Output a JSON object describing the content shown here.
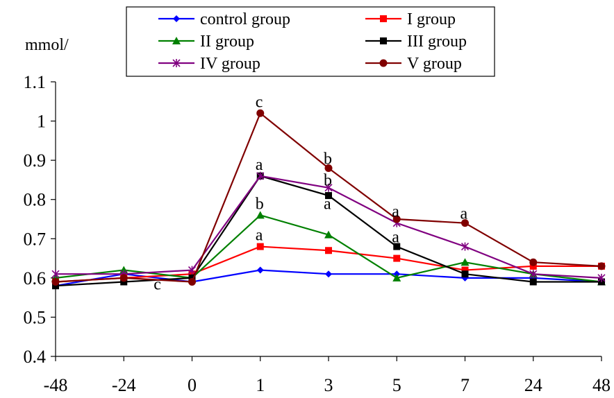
{
  "chart_data": {
    "type": "line",
    "ylabel": "mmol/",
    "categories": [
      "-48",
      "-24",
      "0",
      "1",
      "3",
      "5",
      "7",
      "24",
      "48"
    ],
    "ylim": [
      0.4,
      1.1
    ],
    "yticks": [
      "0.4",
      "0.5",
      "0.6",
      "0.7",
      "0.8",
      "0.9",
      "1",
      "1.1"
    ],
    "grid": false,
    "legend_position": "top",
    "series": [
      {
        "name": "control group",
        "color": "#0000ff",
        "marker": "diamond",
        "values": [
          0.58,
          0.61,
          0.59,
          0.62,
          0.61,
          0.61,
          0.6,
          0.6,
          0.59
        ]
      },
      {
        "name": "I group",
        "color": "#ff0000",
        "marker": "square",
        "values": [
          0.59,
          0.6,
          0.61,
          0.68,
          0.67,
          0.65,
          0.62,
          0.63,
          0.63
        ]
      },
      {
        "name": "II group",
        "color": "#008000",
        "marker": "triangle",
        "values": [
          0.6,
          0.62,
          0.6,
          0.76,
          0.71,
          0.6,
          0.64,
          0.61,
          0.59
        ]
      },
      {
        "name": "III group",
        "color": "#000000",
        "marker": "square",
        "values": [
          0.58,
          0.59,
          0.6,
          0.86,
          0.81,
          0.68,
          0.61,
          0.59,
          0.59
        ]
      },
      {
        "name": "IV group",
        "color": "#800080",
        "marker": "star",
        "values": [
          0.61,
          0.61,
          0.62,
          0.86,
          0.83,
          0.74,
          0.68,
          0.61,
          0.6
        ]
      },
      {
        "name": "V group",
        "color": "#800000",
        "marker": "circle",
        "values": [
          0.59,
          0.6,
          0.59,
          1.02,
          0.88,
          0.75,
          0.74,
          0.64,
          0.63
        ]
      }
    ],
    "annotations": [
      {
        "text": "c",
        "category": "-24",
        "y": 0.585
      },
      {
        "text": "c",
        "category": "1",
        "y": 1.05
      },
      {
        "text": "a",
        "category": "1",
        "y": 0.89
      },
      {
        "text": "b",
        "category": "1",
        "y": 0.79
      },
      {
        "text": "a",
        "category": "1",
        "y": 0.71
      },
      {
        "text": "b",
        "category": "3",
        "y": 0.905
      },
      {
        "text": "b",
        "category": "3",
        "y": 0.85
      },
      {
        "text": "a",
        "category": "3",
        "y": 0.79
      },
      {
        "text": "a",
        "category": "5",
        "y": 0.77
      },
      {
        "text": "a",
        "category": "5",
        "y": 0.705
      },
      {
        "text": "a",
        "category": "7",
        "y": 0.765
      }
    ]
  }
}
